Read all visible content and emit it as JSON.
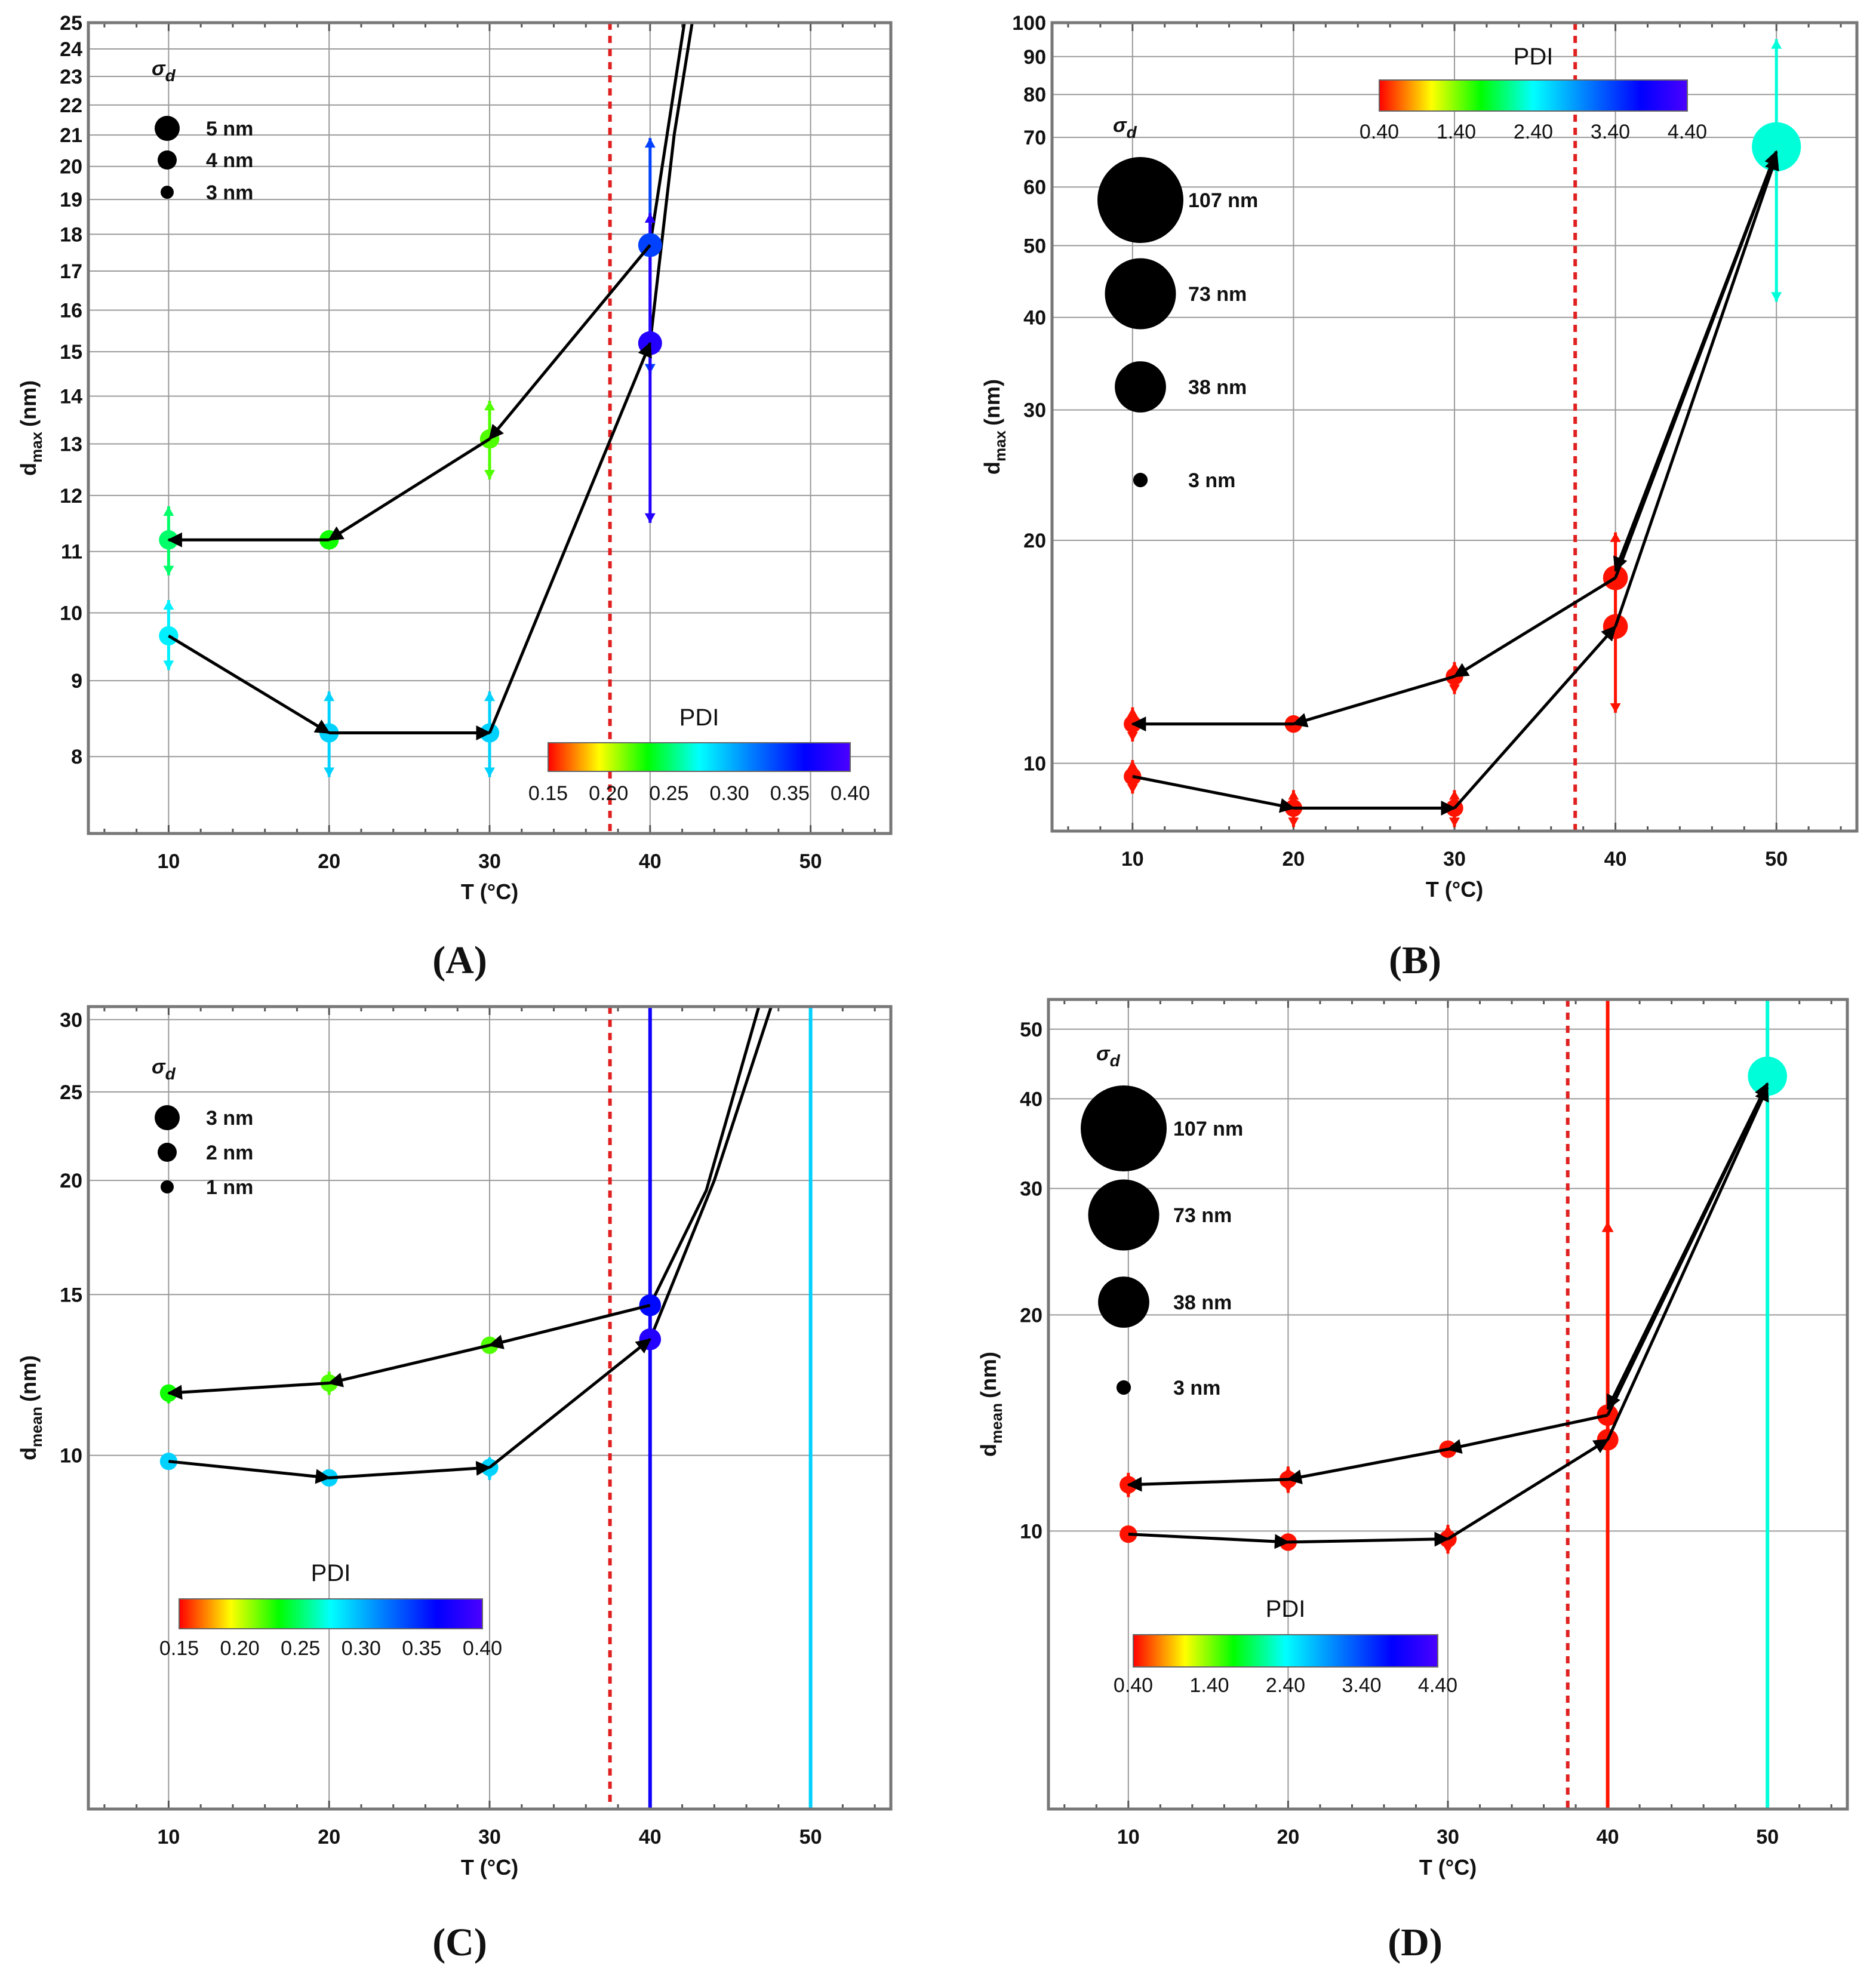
{
  "chart_data": [
    {
      "id": "A",
      "type": "scatter",
      "panel_label": "(A)",
      "xlabel": "T (°C)",
      "ylabel": "d",
      "ylabel_sub": "max",
      "ylabel_unit": "(nm)",
      "yscale": "log",
      "xlim": [
        5,
        55
      ],
      "ylim": [
        7.1,
        25
      ],
      "xticks": [
        10,
        20,
        30,
        40,
        50
      ],
      "yticks": [
        8,
        9,
        10,
        11,
        12,
        13,
        14,
        15,
        16,
        17,
        18,
        19,
        20,
        21,
        22,
        23,
        24,
        25
      ],
      "threshold_x": 37.5,
      "legend": {
        "title": "σ",
        "title_sub": "d",
        "items": [
          {
            "label": "5 nm",
            "value": 5
          },
          {
            "label": "4 nm",
            "value": 4
          },
          {
            "label": "3 nm",
            "value": 3
          }
        ]
      },
      "colorbar": {
        "title": "PDI",
        "range": [
          0.15,
          0.4
        ],
        "ticks": [
          "0.15",
          "0.20",
          "0.25",
          "0.30",
          "0.35",
          "0.40"
        ],
        "position": "bottom-right"
      },
      "points": [
        {
          "x": 10,
          "y": 11.2,
          "err_up": 11.8,
          "err_down": 10.6,
          "sigma": 3.3,
          "pdi": 0.25
        },
        {
          "x": 20,
          "y": 11.2,
          "sigma": 3.3,
          "pdi": 0.23
        },
        {
          "x": 30,
          "y": 13.1,
          "err_up": 13.9,
          "err_down": 12.3,
          "sigma": 3.3,
          "pdi": 0.22
        },
        {
          "x": 40,
          "y": 17.7,
          "err_up": 20.9,
          "err_down": 14.5,
          "sigma": 5,
          "pdi": 0.34
        },
        {
          "x": 10,
          "y": 9.65,
          "err_up": 10.2,
          "err_down": 9.15,
          "sigma": 3.3,
          "pdi": 0.28
        },
        {
          "x": 20,
          "y": 8.3,
          "err_up": 8.85,
          "err_down": 7.75,
          "sigma": 3.3,
          "pdi": 0.29
        },
        {
          "x": 30,
          "y": 8.3,
          "err_up": 8.85,
          "err_down": 7.75,
          "sigma": 3.3,
          "pdi": 0.29
        },
        {
          "x": 40,
          "y": 15.2,
          "err_up": 18.6,
          "err_down": 11.5,
          "sigma": 5,
          "pdi": 0.38
        }
      ],
      "arrows": [
        {
          "from": [
            20,
            11.2
          ],
          "to": [
            10,
            11.2
          ]
        },
        {
          "from": [
            30,
            13.1
          ],
          "to": [
            20,
            11.2
          ]
        },
        {
          "from": [
            40,
            17.7
          ],
          "to": [
            30,
            13.1
          ]
        },
        {
          "from": [
            10,
            9.65
          ],
          "to": [
            20,
            8.3
          ]
        },
        {
          "from": [
            20,
            8.3
          ],
          "to": [
            30,
            8.3
          ]
        },
        {
          "from": [
            30,
            8.3
          ],
          "to": [
            40,
            15.2
          ]
        }
      ],
      "curves": [
        [
          [
            40,
            15.2
          ],
          [
            41.5,
            21
          ],
          [
            43,
            26.5
          ]
        ],
        [
          [
            40,
            17.7
          ],
          [
            41.2,
            21.5
          ],
          [
            42.5,
            26.5
          ]
        ]
      ],
      "vlines": []
    },
    {
      "id": "B",
      "type": "scatter",
      "panel_label": "(B)",
      "xlabel": "T (°C)",
      "ylabel": "d",
      "ylabel_sub": "max",
      "ylabel_unit": "(nm)",
      "yscale": "log",
      "xlim": [
        5,
        55
      ],
      "ylim": [
        8.1,
        100
      ],
      "xticks": [
        10,
        20,
        30,
        40,
        50
      ],
      "yticks": [
        10,
        20,
        30,
        40,
        50,
        60,
        70,
        80,
        90,
        100
      ],
      "threshold_x": 37.5,
      "legend": {
        "title": "σ",
        "title_sub": "d",
        "items": [
          {
            "label": "107 nm",
            "value": 107
          },
          {
            "label": "73 nm",
            "value": 73
          },
          {
            "label": "38 nm",
            "value": 38
          },
          {
            "label": "3 nm",
            "value": 3
          }
        ]
      },
      "colorbar": {
        "title": "PDI",
        "range": [
          0.4,
          4.4
        ],
        "ticks": [
          "0.40",
          "1.40",
          "2.40",
          "3.40",
          "4.40"
        ],
        "position": "top-right"
      },
      "points": [
        {
          "x": 10,
          "y": 11.3,
          "err_up": 11.9,
          "err_down": 10.7,
          "sigma": 6,
          "pdi": 0.45
        },
        {
          "x": 20,
          "y": 11.3,
          "sigma": 6,
          "pdi": 0.45
        },
        {
          "x": 30,
          "y": 13.1,
          "err_up": 13.7,
          "err_down": 12.4,
          "sigma": 6,
          "pdi": 0.45
        },
        {
          "x": 40,
          "y": 17.8,
          "err_up": 20.5,
          "err_down": 15.3,
          "sigma": 12,
          "pdi": 0.45
        },
        {
          "x": 10,
          "y": 9.6,
          "err_up": 10.1,
          "err_down": 9.1,
          "sigma": 6,
          "pdi": 0.45
        },
        {
          "x": 20,
          "y": 8.7,
          "err_up": 9.2,
          "err_down": 8.2,
          "sigma": 6,
          "pdi": 0.45
        },
        {
          "x": 30,
          "y": 8.7,
          "err_up": 9.2,
          "err_down": 8.2,
          "sigma": 6,
          "pdi": 0.45
        },
        {
          "x": 40,
          "y": 15.3,
          "err_up": 17.8,
          "err_down": 11.7,
          "sigma": 12,
          "pdi": 0.45
        },
        {
          "x": 50,
          "y": 68,
          "err_up": 95,
          "err_down": 42,
          "sigma": 47,
          "pdi": 2.3
        }
      ],
      "arrows": [
        {
          "from": [
            20,
            11.3
          ],
          "to": [
            10,
            11.3
          ]
        },
        {
          "from": [
            30,
            13.1
          ],
          "to": [
            20,
            11.3
          ]
        },
        {
          "from": [
            40,
            17.8
          ],
          "to": [
            30,
            13.1
          ]
        },
        {
          "from": [
            10,
            9.6
          ],
          "to": [
            20,
            8.7
          ]
        },
        {
          "from": [
            20,
            8.7
          ],
          "to": [
            30,
            8.7
          ]
        },
        {
          "from": [
            30,
            8.7
          ],
          "to": [
            40,
            15.3
          ]
        },
        {
          "from": [
            40,
            17.8
          ],
          "to": [
            50,
            67
          ]
        },
        {
          "from": [
            50,
            67
          ],
          "to": [
            40,
            18.2
          ]
        },
        {
          "from": [
            40,
            15.3
          ],
          "to": [
            50,
            66
          ]
        }
      ],
      "curves": [],
      "vlines": []
    },
    {
      "id": "C",
      "type": "scatter",
      "panel_label": "(C)",
      "xlabel": "T (°C)",
      "ylabel": "d",
      "ylabel_sub": "mean",
      "ylabel_unit": "(nm)",
      "yscale": "log",
      "xlim": [
        5,
        55
      ],
      "ylim": [
        4.1,
        31
      ],
      "xticks": [
        10,
        20,
        30,
        40,
        50
      ],
      "yticks": [
        10,
        15,
        20,
        25,
        30
      ],
      "threshold_x": 37.5,
      "legend": {
        "title": "σ",
        "title_sub": "d",
        "items": [
          {
            "label": "3 nm",
            "value": 3
          },
          {
            "label": "2 nm",
            "value": 2
          },
          {
            "label": "1 nm",
            "value": 1
          }
        ]
      },
      "colorbar": {
        "title": "PDI",
        "range": [
          0.15,
          0.4
        ],
        "ticks": [
          "0.15",
          "0.20",
          "0.25",
          "0.30",
          "0.35",
          "0.40"
        ],
        "position": "bottom-left"
      },
      "points": [
        {
          "x": 10,
          "y": 11.7,
          "err_up": 11.95,
          "err_down": 11.4,
          "sigma": 1.6,
          "pdi": 0.23
        },
        {
          "x": 20,
          "y": 12,
          "err_up": 12.35,
          "err_down": 11.65,
          "sigma": 1.6,
          "pdi": 0.22
        },
        {
          "x": 30,
          "y": 13.2,
          "sigma": 1.6,
          "pdi": 0.22
        },
        {
          "x": 40,
          "y": 14.6,
          "sigma": 2.5,
          "pdi": 0.36
        },
        {
          "x": 10,
          "y": 9.85,
          "sigma": 1.6,
          "pdi": 0.29
        },
        {
          "x": 20,
          "y": 9.45,
          "sigma": 1.6,
          "pdi": 0.29
        },
        {
          "x": 30,
          "y": 9.7,
          "err_up": 9.95,
          "err_down": 9.4,
          "sigma": 1.6,
          "pdi": 0.29
        },
        {
          "x": 40,
          "y": 13.4,
          "sigma": 2.5,
          "pdi": 0.38
        }
      ],
      "arrows": [
        {
          "from": [
            20,
            12
          ],
          "to": [
            10,
            11.7
          ]
        },
        {
          "from": [
            30,
            13.2
          ],
          "to": [
            20,
            12
          ]
        },
        {
          "from": [
            40,
            14.6
          ],
          "to": [
            30,
            13.2
          ]
        },
        {
          "from": [
            10,
            9.85
          ],
          "to": [
            20,
            9.45
          ]
        },
        {
          "from": [
            20,
            9.45
          ],
          "to": [
            30,
            9.7
          ]
        },
        {
          "from": [
            30,
            9.7
          ],
          "to": [
            40,
            13.4
          ]
        }
      ],
      "curves": [
        [
          [
            40,
            14.6
          ],
          [
            43.5,
            19.5
          ],
          [
            47,
            32
          ]
        ],
        [
          [
            40,
            13.4
          ],
          [
            44,
            20
          ],
          [
            47.8,
            32
          ]
        ]
      ],
      "vlines": [
        {
          "x": 40,
          "pdi": 0.37
        },
        {
          "x": 50,
          "pdi": 0.29
        }
      ]
    },
    {
      "id": "D",
      "type": "scatter",
      "panel_label": "(D)",
      "xlabel": "T (°C)",
      "ylabel": "d",
      "ylabel_sub": "mean",
      "ylabel_unit": "(nm)",
      "yscale": "log",
      "xlim": [
        5,
        55
      ],
      "ylim": [
        4.1,
        55
      ],
      "xticks": [
        10,
        20,
        30,
        40,
        50
      ],
      "yticks": [
        10,
        20,
        30,
        40,
        50
      ],
      "threshold_x": 37.5,
      "legend": {
        "title": "σ",
        "title_sub": "d",
        "items": [
          {
            "label": "107 nm",
            "value": 107
          },
          {
            "label": "73 nm",
            "value": 73
          },
          {
            "label": "38 nm",
            "value": 38
          },
          {
            "label": "3 nm",
            "value": 3
          }
        ]
      },
      "colorbar": {
        "title": "PDI",
        "range": [
          0.4,
          4.4
        ],
        "ticks": [
          "0.40",
          "1.40",
          "2.40",
          "3.40",
          "4.40"
        ],
        "position": "bottom-left"
      },
      "points": [
        {
          "x": 10,
          "y": 11.6,
          "err_up": 12.05,
          "err_down": 11.15,
          "sigma": 6,
          "pdi": 0.45
        },
        {
          "x": 20,
          "y": 11.8,
          "err_up": 12.3,
          "err_down": 11.3,
          "sigma": 6,
          "pdi": 0.45
        },
        {
          "x": 30,
          "y": 13,
          "sigma": 6,
          "pdi": 0.45
        },
        {
          "x": 40,
          "y": 14.5,
          "sigma": 9,
          "pdi": 0.45
        },
        {
          "x": 10,
          "y": 9.9,
          "sigma": 6,
          "pdi": 0.45
        },
        {
          "x": 20,
          "y": 9.65,
          "sigma": 6,
          "pdi": 0.45
        },
        {
          "x": 30,
          "y": 9.75,
          "err_up": 10.2,
          "err_down": 9.3,
          "sigma": 6,
          "pdi": 0.45
        },
        {
          "x": 40,
          "y": 13.4,
          "sigma": 9,
          "pdi": 0.45
        },
        {
          "x": 50,
          "y": 43,
          "sigma": 30,
          "pdi": 2.3
        }
      ],
      "arrows": [
        {
          "from": [
            20,
            11.8
          ],
          "to": [
            10,
            11.6
          ]
        },
        {
          "from": [
            30,
            13
          ],
          "to": [
            20,
            11.8
          ]
        },
        {
          "from": [
            40,
            14.5
          ],
          "to": [
            30,
            13
          ]
        },
        {
          "from": [
            10,
            9.9
          ],
          "to": [
            20,
            9.65
          ]
        },
        {
          "from": [
            20,
            9.65
          ],
          "to": [
            30,
            9.75
          ]
        },
        {
          "from": [
            30,
            9.75
          ],
          "to": [
            40,
            13.4
          ]
        },
        {
          "from": [
            40,
            14.5
          ],
          "to": [
            50,
            42
          ]
        },
        {
          "from": [
            50,
            42
          ],
          "to": [
            40,
            14.8
          ]
        },
        {
          "from": [
            40,
            13.4
          ],
          "to": [
            50,
            41.5
          ]
        }
      ],
      "curves": [],
      "vlines": [
        {
          "x": 40,
          "pdi": 0.45,
          "arrow_top": 27
        },
        {
          "x": 50,
          "pdi": 2.3
        }
      ]
    }
  ]
}
